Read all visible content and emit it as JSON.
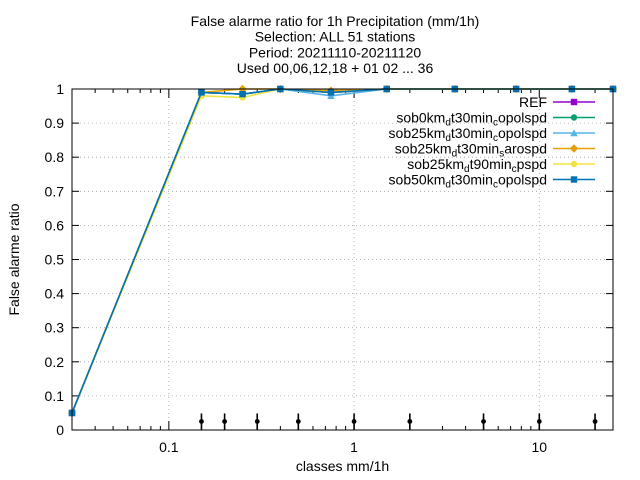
{
  "chart_data": {
    "type": "line",
    "title_lines": [
      "False alarme ratio  for 1h Precipitation (mm/1h)",
      "Selection: ALL     51 stations",
      "Period: 20211110-20211120",
      "Used 00,06,12,18 + 01 02 ... 36"
    ],
    "xlabel": "classes mm/1h",
    "ylabel": "False alarme ratio",
    "x_scale": "log",
    "xlim": [
      0.03,
      25
    ],
    "ylim": [
      0,
      1
    ],
    "x_ticks": [
      {
        "value": 0.1,
        "label": "0.1"
      },
      {
        "value": 1,
        "label": "1"
      },
      {
        "value": 10,
        "label": "10"
      }
    ],
    "y_ticks": [
      {
        "value": 0,
        "label": "0"
      },
      {
        "value": 0.1,
        "label": "0.1"
      },
      {
        "value": 0.2,
        "label": "0.2"
      },
      {
        "value": 0.3,
        "label": "0.3"
      },
      {
        "value": 0.4,
        "label": "0.4"
      },
      {
        "value": 0.5,
        "label": "0.5"
      },
      {
        "value": 0.6,
        "label": "0.6"
      },
      {
        "value": 0.7,
        "label": "0.7"
      },
      {
        "value": 0.8,
        "label": "0.8"
      },
      {
        "value": 0.9,
        "label": "0.9"
      },
      {
        "value": 1,
        "label": "1"
      }
    ],
    "grid": true,
    "legend_position": "top-right",
    "series": [
      {
        "name": "REF",
        "legend_parts": [
          [
            "REF",
            ""
          ]
        ],
        "color": "#9400d3",
        "marker": "square",
        "x": [
          0.03,
          0.15,
          0.25,
          0.4,
          0.75,
          1.5,
          3.5,
          7.5,
          15,
          25
        ],
        "y": [
          0.05,
          0.99,
          0.985,
          1.0,
          0.99,
          1.0,
          1.0,
          1.0,
          1.0,
          1.0
        ]
      },
      {
        "name": "sob0km_dt30min_copolspd",
        "legend_parts": [
          [
            "sob0km",
            ""
          ],
          [
            "d",
            "sub"
          ],
          [
            "t30min",
            ""
          ],
          [
            "c",
            "sub"
          ],
          [
            "opolspd",
            ""
          ]
        ],
        "color": "#009e73",
        "marker": "circle",
        "x": [
          0.03,
          0.15,
          0.25,
          0.4,
          0.75,
          1.5,
          3.5,
          7.5,
          15,
          25
        ],
        "y": [
          0.05,
          0.99,
          0.985,
          1.0,
          0.99,
          1.0,
          1.0,
          1.0,
          1.0,
          1.0
        ]
      },
      {
        "name": "sob25km_dt30min_copolspd",
        "legend_parts": [
          [
            "sob25km",
            ""
          ],
          [
            "d",
            "sub"
          ],
          [
            "t30min",
            ""
          ],
          [
            "c",
            "sub"
          ],
          [
            "opolspd",
            ""
          ]
        ],
        "color": "#56b4e9",
        "marker": "triangle",
        "x": [
          0.03,
          0.15,
          0.25,
          0.4,
          0.75,
          1.5,
          3.5,
          7.5,
          15,
          25
        ],
        "y": [
          0.05,
          0.99,
          0.985,
          1.0,
          0.98,
          1.0,
          1.0,
          1.0,
          1.0,
          1.0
        ]
      },
      {
        "name": "sob25km_dt30min_sarospd",
        "legend_parts": [
          [
            "sob25km",
            ""
          ],
          [
            "d",
            "sub"
          ],
          [
            "t30min",
            ""
          ],
          [
            "s",
            "sub"
          ],
          [
            "arospd",
            ""
          ]
        ],
        "color": "#e69f00",
        "marker": "diamond",
        "x": [
          0.03,
          0.15,
          0.25,
          0.4,
          0.75,
          1.5,
          3.5,
          7.5,
          15,
          25
        ],
        "y": [
          0.05,
          0.99,
          1.0,
          1.0,
          0.995,
          1.0,
          1.0,
          1.0,
          1.0,
          1.0
        ]
      },
      {
        "name": "sob25km_dt90min_cpspd",
        "legend_parts": [
          [
            "sob25km",
            ""
          ],
          [
            "d",
            "sub"
          ],
          [
            "t90min",
            ""
          ],
          [
            "c",
            "sub"
          ],
          [
            "pspd",
            ""
          ]
        ],
        "color": "#f0e442",
        "marker": "circle",
        "x": [
          0.03,
          0.15,
          0.25,
          0.4,
          0.75,
          1.5,
          3.5,
          7.5,
          15,
          25
        ],
        "y": [
          0.05,
          0.98,
          0.975,
          1.0,
          0.99,
          1.0,
          1.0,
          1.0,
          1.0,
          1.0
        ]
      },
      {
        "name": "sob50km_dt30min_copolspd",
        "legend_parts": [
          [
            "sob50km",
            ""
          ],
          [
            "d",
            "sub"
          ],
          [
            "t30min",
            ""
          ],
          [
            "c",
            "sub"
          ],
          [
            "opolspd",
            ""
          ]
        ],
        "color": "#0072b2",
        "marker": "square",
        "x": [
          0.03,
          0.15,
          0.25,
          0.4,
          0.75,
          1.5,
          3.5,
          7.5,
          15,
          25
        ],
        "y": [
          0.05,
          0.99,
          0.985,
          1.0,
          0.99,
          1.0,
          1.0,
          1.0,
          1.0,
          1.0
        ]
      }
    ],
    "error_bar_x": [
      0.15,
      0.2,
      0.3,
      0.5,
      1,
      2,
      5,
      10,
      20
    ],
    "error_bar_y": 0.025
  }
}
